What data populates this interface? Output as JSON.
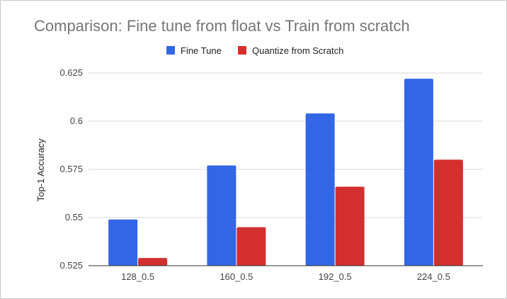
{
  "chart_data": {
    "type": "bar",
    "title": "Comparison: Fine tune from float vs Train from scratch",
    "xlabel": "",
    "ylabel": "Top-1 Accuracy",
    "categories": [
      "128_0.5",
      "160_0.5",
      "192_0.5",
      "224_0.5"
    ],
    "series": [
      {
        "name": "Fine Tune",
        "color": "#3366e6",
        "values": [
          0.549,
          0.577,
          0.604,
          0.622
        ]
      },
      {
        "name": "Quantize from Scratch",
        "color": "#d32f2f",
        "values": [
          0.529,
          0.545,
          0.566,
          0.58
        ]
      }
    ],
    "ylim": [
      0.525,
      0.625
    ],
    "yticks": [
      0.525,
      0.55,
      0.575,
      0.6,
      0.625
    ],
    "ytick_labels": [
      "0.525",
      "0.55",
      "0.575",
      "0.6",
      "0.625"
    ],
    "grid": true,
    "legend_position": "top-center"
  }
}
